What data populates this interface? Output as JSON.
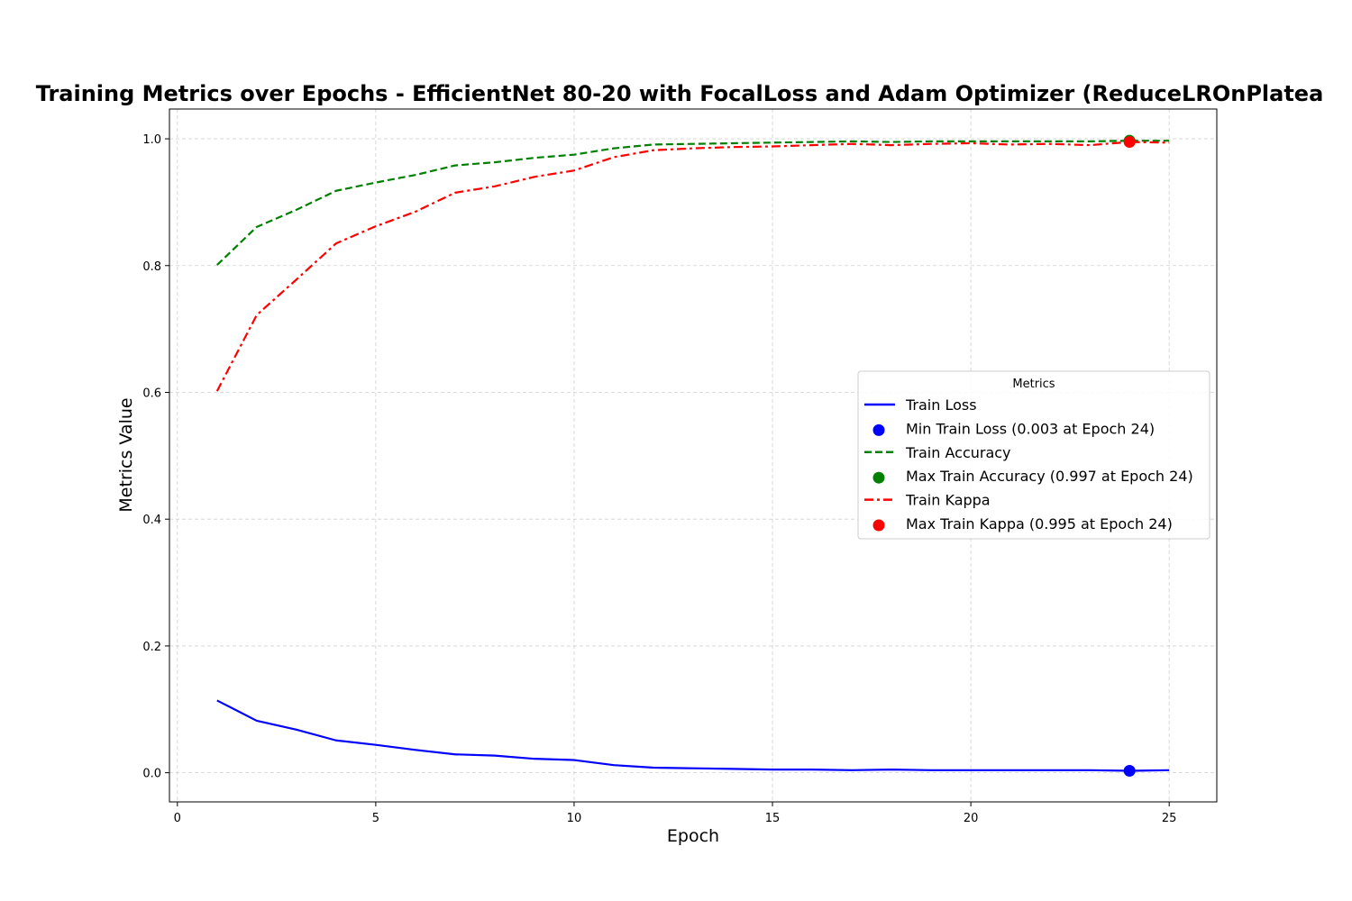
{
  "chart_data": {
    "type": "line",
    "title": "Training Metrics over Epochs - EfficientNet 80-20 with FocalLoss and Adam Optimizer (ReduceLROnPlatea",
    "xlabel": "Epoch",
    "ylabel": "Metrics Value",
    "xlim": [
      -0.2,
      26.2
    ],
    "ylim": [
      -0.046,
      1.047
    ],
    "xticks": [
      0,
      5,
      10,
      15,
      20,
      25
    ],
    "yticks": [
      0.0,
      0.2,
      0.4,
      0.6,
      0.8,
      1.0
    ],
    "xtick_labels": [
      "0",
      "5",
      "10",
      "15",
      "20",
      "25"
    ],
    "ytick_labels": [
      "0.0",
      "0.2",
      "0.4",
      "0.6",
      "0.8",
      "1.0"
    ],
    "grid": true,
    "legend": {
      "title": "Metrics",
      "placement": "center-right"
    },
    "x": [
      1,
      2,
      3,
      4,
      5,
      6,
      7,
      8,
      9,
      10,
      11,
      12,
      13,
      14,
      15,
      16,
      17,
      18,
      19,
      20,
      21,
      22,
      23,
      24,
      25
    ],
    "series": [
      {
        "name": "Train Loss",
        "color": "#0000ff",
        "style": "solid",
        "values": [
          0.114,
          0.082,
          0.068,
          0.051,
          0.044,
          0.036,
          0.029,
          0.027,
          0.022,
          0.02,
          0.012,
          0.008,
          0.007,
          0.006,
          0.005,
          0.005,
          0.004,
          0.005,
          0.004,
          0.004,
          0.004,
          0.004,
          0.004,
          0.003,
          0.004
        ]
      },
      {
        "name": "Train Accuracy",
        "color": "#008000",
        "style": "dashed",
        "values": [
          0.801,
          0.861,
          0.888,
          0.918,
          0.931,
          0.943,
          0.958,
          0.963,
          0.97,
          0.975,
          0.985,
          0.991,
          0.992,
          0.993,
          0.994,
          0.995,
          0.996,
          0.995,
          0.996,
          0.996,
          0.996,
          0.996,
          0.996,
          0.997,
          0.997
        ]
      },
      {
        "name": "Train Kappa",
        "color": "#ff0000",
        "style": "dashdot",
        "values": [
          0.602,
          0.722,
          0.778,
          0.835,
          0.862,
          0.885,
          0.915,
          0.925,
          0.94,
          0.95,
          0.971,
          0.982,
          0.985,
          0.987,
          0.988,
          0.99,
          0.992,
          0.99,
          0.992,
          0.993,
          0.991,
          0.992,
          0.99,
          0.995,
          0.994
        ]
      }
    ],
    "markers": [
      {
        "name": "Min Train Loss (0.003 at Epoch 24)",
        "x": 24,
        "y": 0.003,
        "color": "#0000ff"
      },
      {
        "name": "Max Train Accuracy (0.997 at Epoch 24)",
        "x": 24,
        "y": 0.997,
        "color": "#008000"
      },
      {
        "name": "Max Train Kappa (0.995 at Epoch 24)",
        "x": 24,
        "y": 0.995,
        "color": "#ff0000"
      }
    ]
  }
}
